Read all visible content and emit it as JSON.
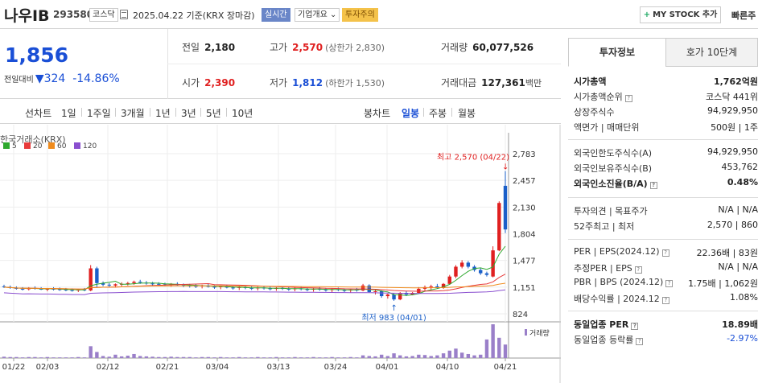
{
  "header": {
    "stock_name": "나우IB",
    "stock_code": "293580",
    "market_tag": "코스닥",
    "date_text": "2025.04.22 기준(KRX 장마감)",
    "realtime_tag": "실시간",
    "company_tag": "기업개요 ⌄",
    "warning_tag": "투자주의",
    "mystock_label": "MY STOCK 추가",
    "quick_label": "빠른주"
  },
  "summary": {
    "current_price": "1,856",
    "diff_label": "전일대비",
    "diff_value": "▼324",
    "diff_rate": "-14.86%",
    "prev_close_label": "전일",
    "prev_close": "2,180",
    "high_label": "고가",
    "high": "2,570",
    "high_sub": "(상한가 2,830)",
    "volume_label": "거래량",
    "volume": "60,077,526",
    "open_label": "시가",
    "open": "2,390",
    "low_label": "저가",
    "low": "1,812",
    "low_sub": "(하한가 1,530)",
    "amount_label": "거래대금",
    "amount": "127,361",
    "amount_unit": "백만"
  },
  "period_tabs": {
    "line_chart": "선차트",
    "day1": "1일",
    "week1": "1주일",
    "month3": "3개월",
    "year1": "1년",
    "year3": "3년",
    "year5": "5년",
    "year10": "10년",
    "candle_chart": "봉차트",
    "daily": "일봉",
    "weekly": "주봉",
    "monthly": "월봉"
  },
  "chart_data": {
    "type": "candlestick",
    "source": "한국거래소(KRX)",
    "moving_averages": [
      {
        "name": "5",
        "color": "#2ea82e"
      },
      {
        "name": "20",
        "color": "#e83a3a"
      },
      {
        "name": "60",
        "color": "#f08c1e"
      },
      {
        "name": "120",
        "color": "#8a4fcf"
      }
    ],
    "y_ticks": [
      "2,783",
      "2,457",
      "2,130",
      "1,804",
      "1,477",
      "1,151",
      "824"
    ],
    "x_ticks": [
      "01/22",
      "02/03",
      "02/12",
      "02/21",
      "03/04",
      "03/13",
      "03/24",
      "04/01",
      "04/10",
      "04/21"
    ],
    "volume_label": "거래량",
    "high_annotation": "최고 2,570 (04/22)",
    "low_annotation": "최저 983 (04/01)",
    "candles_ohlc": [
      [
        1160,
        1180,
        1140,
        1150
      ],
      [
        1150,
        1170,
        1130,
        1140
      ],
      [
        1140,
        1160,
        1120,
        1130
      ],
      [
        1130,
        1150,
        1110,
        1125
      ],
      [
        1125,
        1150,
        1110,
        1140
      ],
      [
        1140,
        1160,
        1120,
        1135
      ],
      [
        1135,
        1150,
        1115,
        1120
      ],
      [
        1120,
        1140,
        1100,
        1130
      ],
      [
        1130,
        1150,
        1110,
        1125
      ],
      [
        1125,
        1145,
        1105,
        1120
      ],
      [
        1120,
        1140,
        1100,
        1115
      ],
      [
        1115,
        1135,
        1095,
        1110
      ],
      [
        1110,
        1130,
        1090,
        1120
      ],
      [
        1120,
        1140,
        1100,
        1115
      ],
      [
        1110,
        1420,
        1100,
        1380
      ],
      [
        1380,
        1400,
        1150,
        1200
      ],
      [
        1200,
        1220,
        1160,
        1180
      ],
      [
        1180,
        1200,
        1150,
        1170
      ],
      [
        1170,
        1195,
        1145,
        1185
      ],
      [
        1185,
        1210,
        1160,
        1190
      ],
      [
        1190,
        1215,
        1170,
        1200
      ],
      [
        1200,
        1230,
        1180,
        1215
      ],
      [
        1215,
        1240,
        1190,
        1205
      ],
      [
        1205,
        1225,
        1180,
        1195
      ],
      [
        1195,
        1215,
        1170,
        1190
      ],
      [
        1190,
        1210,
        1165,
        1185
      ],
      [
        1185,
        1205,
        1160,
        1180
      ],
      [
        1180,
        1200,
        1155,
        1190
      ],
      [
        1190,
        1210,
        1165,
        1175
      ],
      [
        1175,
        1195,
        1150,
        1170
      ],
      [
        1170,
        1190,
        1145,
        1165
      ],
      [
        1165,
        1185,
        1140,
        1160
      ],
      [
        1160,
        1180,
        1135,
        1170
      ],
      [
        1170,
        1190,
        1145,
        1155
      ],
      [
        1155,
        1175,
        1130,
        1150
      ],
      [
        1150,
        1170,
        1125,
        1160
      ],
      [
        1160,
        1180,
        1135,
        1145
      ],
      [
        1145,
        1165,
        1120,
        1140
      ],
      [
        1140,
        1160,
        1115,
        1150
      ],
      [
        1150,
        1170,
        1125,
        1140
      ],
      [
        1140,
        1160,
        1115,
        1135
      ],
      [
        1135,
        1155,
        1110,
        1145
      ],
      [
        1145,
        1165,
        1120,
        1135
      ],
      [
        1135,
        1155,
        1110,
        1130
      ],
      [
        1130,
        1150,
        1105,
        1140
      ],
      [
        1140,
        1160,
        1115,
        1130
      ],
      [
        1130,
        1150,
        1105,
        1125
      ],
      [
        1125,
        1145,
        1100,
        1135
      ],
      [
        1135,
        1155,
        1110,
        1125
      ],
      [
        1125,
        1145,
        1100,
        1120
      ],
      [
        1120,
        1140,
        1095,
        1130
      ],
      [
        1130,
        1150,
        1105,
        1120
      ],
      [
        1120,
        1140,
        1095,
        1115
      ],
      [
        1115,
        1135,
        1090,
        1125
      ],
      [
        1125,
        1145,
        1100,
        1115
      ],
      [
        1115,
        1135,
        1090,
        1110
      ],
      [
        1110,
        1130,
        1085,
        1120
      ],
      [
        1120,
        1140,
        1095,
        1110
      ],
      [
        1110,
        1190,
        1100,
        1170
      ],
      [
        1170,
        1185,
        1080,
        1090
      ],
      [
        1090,
        1120,
        1060,
        1100
      ],
      [
        1100,
        1110,
        1020,
        1040
      ],
      [
        1040,
        1070,
        1010,
        1060
      ],
      [
        1060,
        1080,
        983,
        1000
      ],
      [
        1000,
        1090,
        990,
        1080
      ],
      [
        1080,
        1100,
        1040,
        1060
      ],
      [
        1060,
        1090,
        1050,
        1080
      ],
      [
        1080,
        1150,
        1070,
        1130
      ],
      [
        1130,
        1170,
        1100,
        1150
      ],
      [
        1150,
        1180,
        1120,
        1160
      ],
      [
        1160,
        1190,
        1130,
        1140
      ],
      [
        1140,
        1200,
        1130,
        1190
      ],
      [
        1190,
        1300,
        1180,
        1280
      ],
      [
        1280,
        1420,
        1260,
        1400
      ],
      [
        1400,
        1480,
        1380,
        1450
      ],
      [
        1450,
        1470,
        1380,
        1400
      ],
      [
        1400,
        1420,
        1340,
        1360
      ],
      [
        1360,
        1380,
        1300,
        1320
      ],
      [
        1320,
        1340,
        1280,
        1300
      ],
      [
        1280,
        1650,
        1270,
        1600
      ],
      [
        1600,
        2200,
        1590,
        2180
      ],
      [
        2390,
        2570,
        1812,
        1856
      ]
    ],
    "volumes": [
      4,
      3,
      3,
      2,
      3,
      3,
      2,
      3,
      2,
      2,
      2,
      2,
      3,
      2,
      35,
      18,
      6,
      4,
      10,
      5,
      7,
      12,
      6,
      5,
      4,
      3,
      3,
      4,
      3,
      3,
      3,
      2,
      3,
      3,
      2,
      3,
      2,
      2,
      3,
      2,
      2,
      3,
      2,
      2,
      3,
      2,
      2,
      3,
      2,
      2,
      3,
      2,
      2,
      3,
      2,
      2,
      3,
      2,
      8,
      6,
      5,
      10,
      6,
      14,
      8,
      5,
      6,
      10,
      9,
      6,
      8,
      14,
      22,
      28,
      16,
      12,
      8,
      10,
      55,
      100,
      60,
      40
    ]
  },
  "side_panel": {
    "tab_invest": "투자정보",
    "tab_quote": "호가 10단계",
    "rows": [
      {
        "k": "시가총액",
        "v": "1,762억원",
        "bold": true
      },
      {
        "k": "시가총액순위",
        "v": "코스닥 441위",
        "q": true
      },
      {
        "k": "상장주식수",
        "v": "94,929,950"
      },
      {
        "k": "액면가 | 매매단위",
        "v": "500원 | 1주"
      },
      {
        "k": "외국인한도주식수(A)",
        "v": "94,929,950"
      },
      {
        "k": "외국인보유주식수(B)",
        "v": "453,762"
      },
      {
        "k": "외국인소진율(B/A)",
        "v": "0.48%",
        "bold": true,
        "q": true
      },
      {
        "k": "투자의견 | 목표주가",
        "v": "N/A | N/A"
      },
      {
        "k": "52주최고 | 최저",
        "v": "2,570 | 860"
      },
      {
        "k": "PER | EPS(2024.12)",
        "v": "22.36배 | 83원",
        "q": true
      },
      {
        "k": "추정PER | EPS",
        "v": "N/A | N/A",
        "q": true
      },
      {
        "k": "PBR | BPS (2024.12)",
        "v": "1.75배 | 1,062원",
        "q": true
      },
      {
        "k": "배당수익률 | 2024.12",
        "v": "1.08%",
        "q": true
      },
      {
        "k": "동일업종 PER",
        "v": "18.89배",
        "bold": true,
        "q": true
      },
      {
        "k": "동일업종 등락률",
        "v": "-2.97%",
        "q": true,
        "blue": true
      }
    ]
  }
}
